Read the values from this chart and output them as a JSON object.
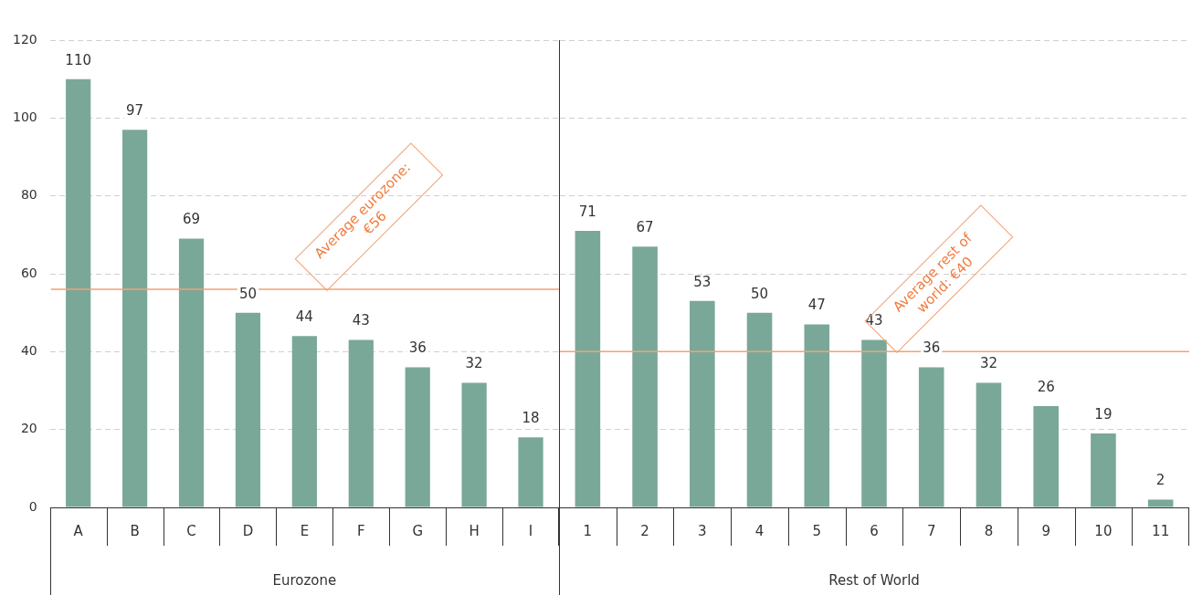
{
  "chart_data": [
    {
      "type": "bar",
      "xlabel": "Eurozone",
      "categories": [
        "A",
        "B",
        "C",
        "D",
        "E",
        "F",
        "G",
        "H",
        "I"
      ],
      "values": [
        110,
        97,
        69,
        50,
        44,
        43,
        36,
        32,
        18
      ],
      "color": "#7aa898",
      "ylim": [
        0,
        120
      ],
      "yticks": [
        0,
        20,
        40,
        60,
        80,
        100,
        120
      ],
      "grid": "y",
      "data_labels": true,
      "legend": false,
      "ref_lines": [
        {
          "axis": "y",
          "value": 56,
          "label": "Average eurozone: €56",
          "color": "#f4a172"
        }
      ]
    },
    {
      "type": "bar",
      "xlabel": "Rest of World",
      "categories": [
        "1",
        "2",
        "3",
        "4",
        "5",
        "6",
        "7",
        "8",
        "9",
        "10",
        "11"
      ],
      "values": [
        71,
        67,
        53,
        50,
        47,
        43,
        36,
        32,
        26,
        19,
        2
      ],
      "color": "#7aa898",
      "ylim": [
        0,
        120
      ],
      "yticks": [
        0,
        20,
        40,
        60,
        80,
        100,
        120
      ],
      "grid": "y",
      "data_labels": true,
      "tick_labels": "x",
      "legend": false,
      "ref_lines": [
        {
          "axis": "y",
          "value": 40,
          "label": "Average rest of world: €40",
          "color": "#f4a172"
        }
      ]
    }
  ]
}
